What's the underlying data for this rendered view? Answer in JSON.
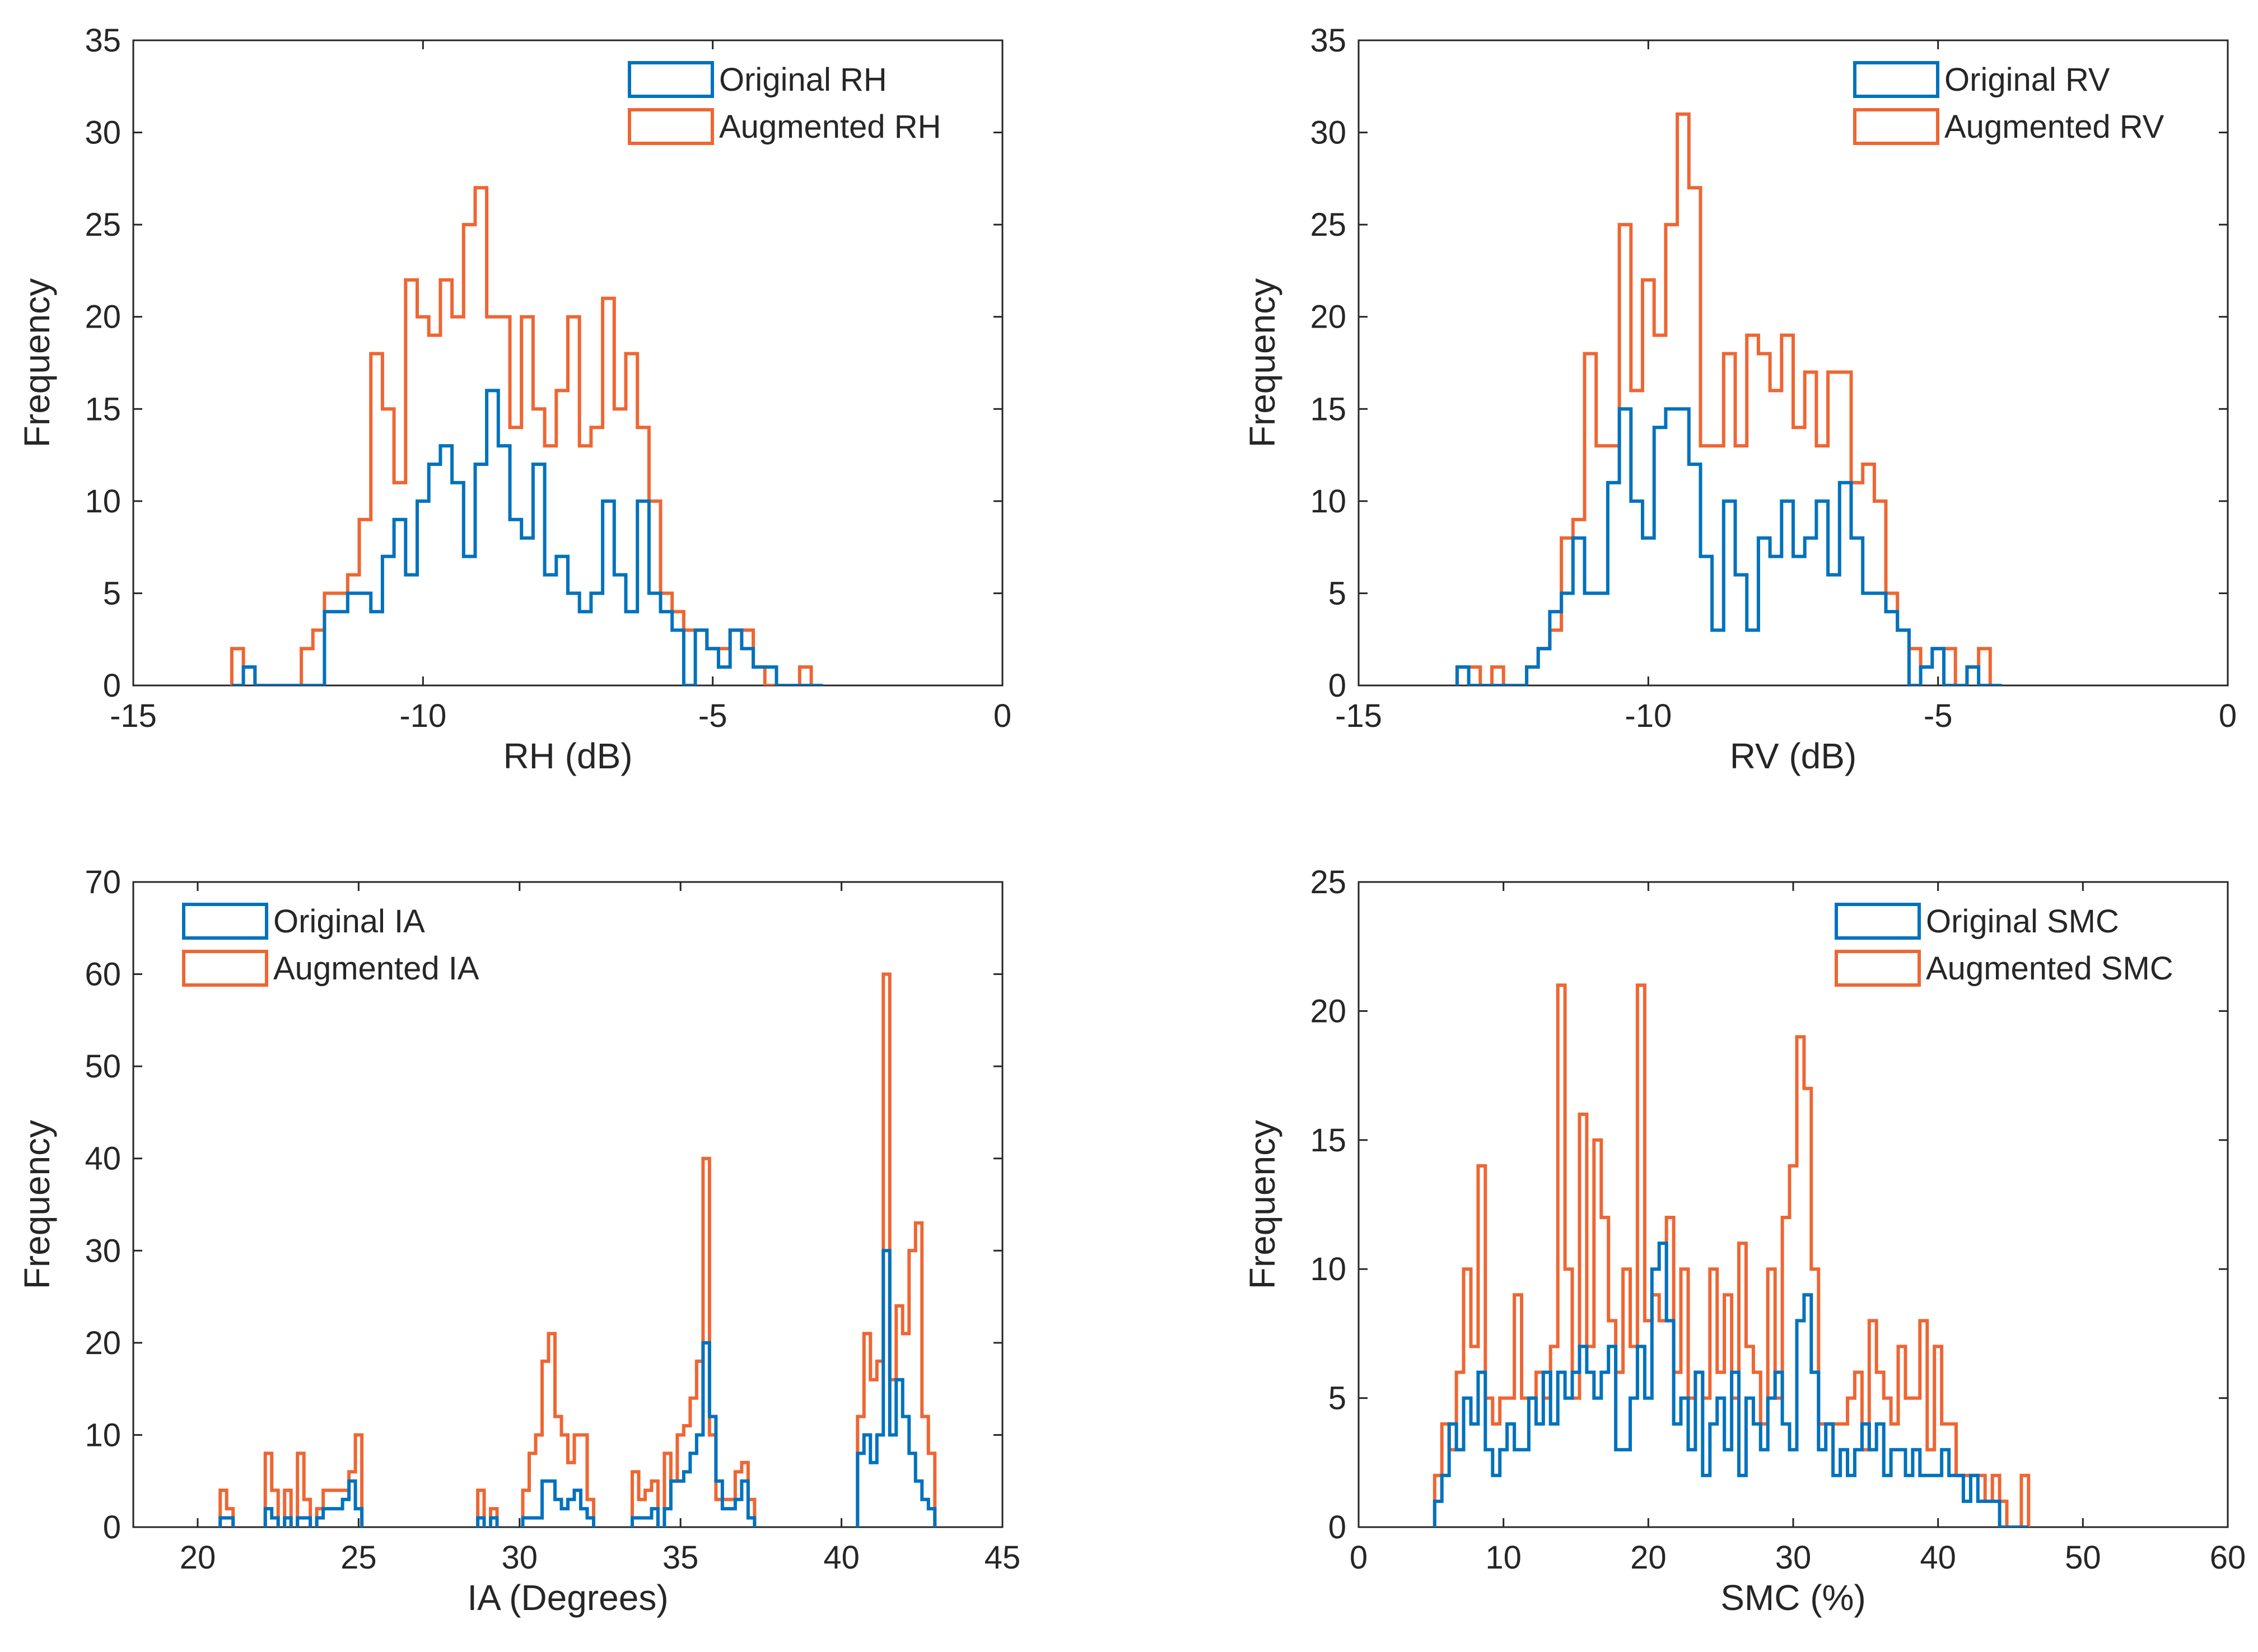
{
  "figure": {
    "colors": {
      "original": "#0072BD",
      "augmented": "#EE6633",
      "axis": "#262626"
    }
  },
  "chart_data": [
    {
      "type": "histogram",
      "id": "rh",
      "xlabel": "RH (dB)",
      "ylabel": "Frequency",
      "xlim": [
        -15,
        0
      ],
      "ylim": [
        0,
        35
      ],
      "xticks": [
        -15,
        -10,
        -5,
        0
      ],
      "yticks": [
        0,
        5,
        10,
        15,
        20,
        25,
        30,
        35
      ],
      "legend_position": "top-right",
      "series": [
        {
          "name": "Original RH",
          "color": "#0072BD",
          "x": [
            -13.2,
            -13.0,
            -12.8,
            -12.6,
            -12.4,
            -12.2,
            -12.0,
            -11.8,
            -11.6,
            -11.4,
            -11.2,
            -11.0,
            -10.8,
            -10.6,
            -10.4,
            -10.2,
            -10.0,
            -9.8,
            -9.6,
            -9.4,
            -9.2,
            -9.0,
            -8.8,
            -8.6,
            -8.4,
            -8.2,
            -8.0,
            -7.8,
            -7.6,
            -7.4,
            -7.2,
            -7.0,
            -6.8,
            -6.6,
            -6.4,
            -6.2,
            -6.0,
            -5.8,
            -5.6,
            -5.4,
            -5.2,
            -5.0,
            -4.8,
            -4.6,
            -4.4,
            -4.2,
            -4.0,
            -3.8,
            -3.6,
            -3.4,
            -3.2
          ],
          "values": [
            0,
            1,
            0,
            0,
            0,
            0,
            0,
            0,
            4,
            4,
            5,
            5,
            4,
            7,
            9,
            6,
            10,
            12,
            13,
            11,
            7,
            12,
            16,
            13,
            9,
            8,
            12,
            6,
            7,
            5,
            4,
            5,
            10,
            6,
            4,
            10,
            5,
            4,
            3,
            0,
            3,
            2,
            1,
            3,
            2,
            1,
            1,
            0,
            0,
            0,
            0
          ]
        },
        {
          "name": "Augmented RH",
          "color": "#EE6633",
          "x": [
            -13.2,
            -13.0,
            -12.8,
            -12.6,
            -12.4,
            -12.2,
            -12.0,
            -11.8,
            -11.6,
            -11.4,
            -11.2,
            -11.0,
            -10.8,
            -10.6,
            -10.4,
            -10.2,
            -10.0,
            -9.8,
            -9.6,
            -9.4,
            -9.2,
            -9.0,
            -8.8,
            -8.6,
            -8.4,
            -8.2,
            -8.0,
            -7.8,
            -7.6,
            -7.4,
            -7.2,
            -7.0,
            -6.8,
            -6.6,
            -6.4,
            -6.2,
            -6.0,
            -5.8,
            -5.6,
            -5.4,
            -5.2,
            -5.0,
            -4.8,
            -4.6,
            -4.4,
            -4.2,
            -4.0,
            -3.8,
            -3.6,
            -3.4,
            -3.2
          ],
          "values": [
            2,
            1,
            0,
            0,
            0,
            0,
            2,
            3,
            5,
            5,
            6,
            9,
            18,
            15,
            11,
            22,
            20,
            19,
            22,
            20,
            25,
            27,
            20,
            20,
            14,
            20,
            15,
            13,
            16,
            20,
            13,
            14,
            21,
            15,
            18,
            14,
            10,
            5,
            4,
            3,
            3,
            2,
            2,
            3,
            3,
            1,
            0,
            0,
            0,
            1,
            0
          ]
        }
      ]
    },
    {
      "type": "histogram",
      "id": "rv",
      "xlabel": "RV (dB)",
      "ylabel": "Frequency",
      "xlim": [
        -15,
        0
      ],
      "ylim": [
        0,
        35
      ],
      "xticks": [
        -15,
        -10,
        -5,
        0
      ],
      "yticks": [
        0,
        5,
        10,
        15,
        20,
        25,
        30,
        35
      ],
      "legend_position": "top-right",
      "series": [
        {
          "name": "Original RV",
          "color": "#0072BD",
          "x": [
            -13.2,
            -13.0,
            -12.8,
            -12.6,
            -12.4,
            -12.2,
            -12.0,
            -11.8,
            -11.6,
            -11.4,
            -11.2,
            -11.0,
            -10.8,
            -10.6,
            -10.4,
            -10.2,
            -10.0,
            -9.8,
            -9.6,
            -9.4,
            -9.2,
            -9.0,
            -8.8,
            -8.6,
            -8.4,
            -8.2,
            -8.0,
            -7.8,
            -7.6,
            -7.4,
            -7.2,
            -7.0,
            -6.8,
            -6.6,
            -6.4,
            -6.2,
            -6.0,
            -5.8,
            -5.6,
            -5.4,
            -5.2,
            -5.0,
            -4.8,
            -4.6,
            -4.4,
            -4.2,
            -4.0
          ],
          "values": [
            1,
            0,
            0,
            0,
            0,
            0,
            1,
            2,
            4,
            5,
            8,
            5,
            5,
            11,
            15,
            10,
            8,
            14,
            15,
            15,
            12,
            7,
            3,
            10,
            6,
            3,
            8,
            7,
            10,
            7,
            8,
            10,
            6,
            11,
            8,
            5,
            5,
            4,
            3,
            0,
            1,
            2,
            0,
            0,
            1,
            0,
            0
          ]
        },
        {
          "name": "Augmented RV",
          "color": "#EE6633",
          "x": [
            -13.2,
            -13.0,
            -12.8,
            -12.6,
            -12.4,
            -12.2,
            -12.0,
            -11.8,
            -11.6,
            -11.4,
            -11.2,
            -11.0,
            -10.8,
            -10.6,
            -10.4,
            -10.2,
            -10.0,
            -9.8,
            -9.6,
            -9.4,
            -9.2,
            -9.0,
            -8.8,
            -8.6,
            -8.4,
            -8.2,
            -8.0,
            -7.8,
            -7.6,
            -7.4,
            -7.2,
            -7.0,
            -6.8,
            -6.6,
            -6.4,
            -6.2,
            -6.0,
            -5.8,
            -5.6,
            -5.4,
            -5.2,
            -5.0,
            -4.8,
            -4.6,
            -4.4,
            -4.2,
            -4.0
          ],
          "values": [
            1,
            1,
            0,
            1,
            0,
            0,
            1,
            2,
            3,
            8,
            9,
            18,
            13,
            13,
            25,
            16,
            22,
            19,
            25,
            31,
            27,
            13,
            13,
            18,
            13,
            19,
            18,
            16,
            19,
            14,
            17,
            13,
            17,
            17,
            11,
            12,
            10,
            5,
            3,
            2,
            1,
            2,
            2,
            0,
            1,
            2,
            0
          ]
        }
      ]
    },
    {
      "type": "histogram",
      "id": "ia",
      "xlabel": "IA (Degrees)",
      "ylabel": "Frequency",
      "xlim": [
        18,
        45
      ],
      "ylim": [
        0,
        70
      ],
      "xticks": [
        20,
        25,
        30,
        35,
        40,
        45
      ],
      "yticks": [
        0,
        10,
        20,
        30,
        40,
        50,
        60,
        70
      ],
      "legend_position": "top-left",
      "series": [
        {
          "name": "Original IA",
          "color": "#0072BD",
          "x": [
            20.8,
            21.0,
            22.2,
            22.4,
            22.8,
            23.2,
            23.4,
            23.8,
            24.0,
            24.2,
            24.4,
            24.6,
            24.8,
            25.0,
            28.8,
            29.2,
            30.2,
            30.4,
            30.6,
            30.8,
            31.0,
            31.2,
            31.4,
            31.6,
            31.8,
            32.0,
            32.2,
            33.6,
            33.8,
            34.0,
            34.2,
            34.6,
            34.8,
            35.0,
            35.2,
            35.4,
            35.6,
            35.8,
            36.0,
            36.2,
            36.4,
            36.6,
            36.8,
            37.0,
            37.2,
            40.6,
            40.8,
            41.0,
            41.2,
            41.4,
            41.6,
            41.8,
            42.0,
            42.2,
            42.4,
            42.6,
            42.8
          ],
          "values": [
            1,
            1,
            2,
            1,
            1,
            1,
            1,
            1,
            2,
            2,
            2,
            3,
            5,
            2,
            1,
            1,
            1,
            1,
            1,
            5,
            5,
            3,
            2,
            3,
            4,
            2,
            1,
            1,
            1,
            1,
            2,
            2,
            5,
            5,
            6,
            8,
            10,
            20,
            12,
            5,
            2,
            2,
            3,
            5,
            1,
            8,
            10,
            7,
            10,
            30,
            10,
            16,
            12,
            8,
            5,
            3,
            2
          ]
        },
        {
          "name": "Augmented IA",
          "color": "#EE6633",
          "x": [
            20.8,
            21.0,
            22.2,
            22.4,
            22.8,
            23.2,
            23.4,
            23.8,
            24.0,
            24.2,
            24.4,
            24.6,
            24.8,
            25.0,
            28.8,
            29.2,
            30.2,
            30.4,
            30.6,
            30.8,
            31.0,
            31.2,
            31.4,
            31.6,
            31.8,
            32.0,
            32.2,
            33.6,
            33.8,
            34.0,
            34.2,
            34.6,
            34.8,
            35.0,
            35.2,
            35.4,
            35.6,
            35.8,
            36.0,
            36.2,
            36.4,
            36.6,
            36.8,
            37.0,
            37.2,
            40.6,
            40.8,
            41.0,
            41.2,
            41.4,
            41.6,
            41.8,
            42.0,
            42.2,
            42.4,
            42.6,
            42.8
          ],
          "values": [
            4,
            2,
            8,
            4,
            4,
            8,
            3,
            2,
            4,
            4,
            4,
            4,
            6,
            10,
            4,
            2,
            4,
            8,
            10,
            18,
            21,
            12,
            10,
            7,
            10,
            10,
            3,
            6,
            3,
            4,
            5,
            8,
            5,
            10,
            11,
            14,
            18,
            40,
            10,
            3,
            3,
            3,
            6,
            7,
            3,
            12,
            21,
            16,
            18,
            60,
            16,
            24,
            21,
            30,
            33,
            12,
            8
          ]
        }
      ]
    },
    {
      "type": "histogram",
      "id": "smc",
      "xlabel": "SMC (%)",
      "ylabel": "Frequency",
      "xlim": [
        0,
        60
      ],
      "ylim": [
        0,
        25
      ],
      "xticks": [
        0,
        10,
        20,
        30,
        40,
        50,
        60
      ],
      "yticks": [
        0,
        5,
        10,
        15,
        20,
        25
      ],
      "legend_position": "top-right",
      "series": [
        {
          "name": "Original SMC",
          "color": "#0072BD",
          "x": [
            5.5,
            6.0,
            6.5,
            7.0,
            7.5,
            8.0,
            8.5,
            9.0,
            9.5,
            10.0,
            10.5,
            11.0,
            11.5,
            12.0,
            12.5,
            13.0,
            13.5,
            14.0,
            14.5,
            15.0,
            15.5,
            16.0,
            16.5,
            17.0,
            17.5,
            18.0,
            18.5,
            19.0,
            19.5,
            20.0,
            20.5,
            21.0,
            21.5,
            22.0,
            22.5,
            23.0,
            23.5,
            24.0,
            24.5,
            25.0,
            25.5,
            26.0,
            26.5,
            27.0,
            27.5,
            28.0,
            28.5,
            29.0,
            29.5,
            30.0,
            30.5,
            31.0,
            31.5,
            32.0,
            32.5,
            33.0,
            33.5,
            34.0,
            34.5,
            35.0,
            35.5,
            36.0,
            36.5,
            37.0,
            37.5,
            38.0,
            38.5,
            39.0,
            39.5,
            40.0,
            40.5,
            41.0,
            41.5,
            42.0,
            42.5,
            43.0,
            43.5,
            44.0,
            44.5,
            45.0,
            45.5,
            46.0
          ],
          "values": [
            1,
            2,
            4,
            3,
            5,
            4,
            6,
            3,
            2,
            3,
            4,
            3,
            3,
            5,
            4,
            6,
            4,
            6,
            5,
            6,
            7,
            6,
            5,
            6,
            7,
            3,
            3,
            5,
            7,
            5,
            10,
            11,
            8,
            4,
            5,
            3,
            6,
            2,
            4,
            5,
            3,
            6,
            2,
            5,
            4,
            3,
            5,
            6,
            4,
            3,
            8,
            9,
            6,
            3,
            4,
            2,
            3,
            2,
            3,
            4,
            3,
            4,
            2,
            3,
            3,
            2,
            3,
            2,
            2,
            2,
            3,
            2,
            2,
            1,
            2,
            1,
            1,
            1,
            0,
            0,
            0,
            0
          ]
        },
        {
          "name": "Augmented SMC",
          "color": "#EE6633",
          "x": [
            5.5,
            6.0,
            6.5,
            7.0,
            7.5,
            8.0,
            8.5,
            9.0,
            9.5,
            10.0,
            10.5,
            11.0,
            11.5,
            12.0,
            12.5,
            13.0,
            13.5,
            14.0,
            14.5,
            15.0,
            15.5,
            16.0,
            16.5,
            17.0,
            17.5,
            18.0,
            18.5,
            19.0,
            19.5,
            20.0,
            20.5,
            21.0,
            21.5,
            22.0,
            22.5,
            23.0,
            23.5,
            24.0,
            24.5,
            25.0,
            25.5,
            26.0,
            26.5,
            27.0,
            27.5,
            28.0,
            28.5,
            29.0,
            29.5,
            30.0,
            30.5,
            31.0,
            31.5,
            32.0,
            32.5,
            33.0,
            33.5,
            34.0,
            34.5,
            35.0,
            35.5,
            36.0,
            36.5,
            37.0,
            37.5,
            38.0,
            38.5,
            39.0,
            39.5,
            40.0,
            40.5,
            41.0,
            41.5,
            42.0,
            42.5,
            43.0,
            43.5,
            44.0,
            44.5,
            45.0,
            45.5,
            46.0
          ],
          "values": [
            2,
            4,
            3,
            6,
            10,
            7,
            14,
            5,
            4,
            5,
            5,
            9,
            5,
            5,
            6,
            5,
            7,
            21,
            10,
            5,
            16,
            7,
            15,
            12,
            8,
            6,
            10,
            7,
            21,
            8,
            9,
            8,
            12,
            6,
            10,
            5,
            6,
            5,
            10,
            6,
            9,
            5,
            11,
            7,
            6,
            4,
            10,
            5,
            12,
            14,
            19,
            17,
            10,
            4,
            4,
            4,
            4,
            5,
            6,
            3,
            8,
            6,
            5,
            4,
            7,
            5,
            5,
            8,
            3,
            7,
            4,
            4,
            2,
            2,
            2,
            2,
            1,
            2,
            1,
            0,
            0,
            2
          ]
        }
      ]
    }
  ]
}
